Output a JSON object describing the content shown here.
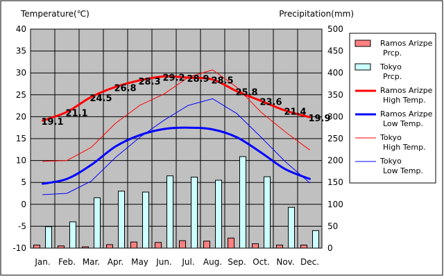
{
  "chart_data": {
    "type": "bar+line",
    "title": "",
    "left_axis_label": "Temperature(℃)",
    "right_axis_label": "Precipitation(mm)",
    "categories": [
      "Jan.",
      "Feb.",
      "Mar.",
      "Apr.",
      "May",
      "Jun.",
      "Jul.",
      "Aug.",
      "Sep.",
      "Oct.",
      "Nov.",
      "Dec."
    ],
    "left_ylim": [
      -10,
      40
    ],
    "left_ticks": [
      -10,
      -5,
      0,
      5,
      10,
      15,
      20,
      25,
      30,
      35,
      40
    ],
    "right_ylim": [
      0,
      500
    ],
    "right_ticks": [
      0,
      50,
      100,
      150,
      200,
      250,
      300,
      350,
      400,
      450,
      500
    ],
    "grid": true,
    "legend_position": "right",
    "colors": {
      "plot_bg": "#c0c0c0",
      "ramos_prcp": "#ff8080",
      "tokyo_prcp": "#ccffff",
      "ramos_high": "#ff0000",
      "ramos_low": "#0000ff",
      "tokyo_high": "#ff0000",
      "tokyo_low": "#0000ff"
    },
    "series": [
      {
        "key": "ramos_prcp",
        "name": "Ramos Arizpe\nPrcp.",
        "type": "bar",
        "axis": "right",
        "values": [
          7,
          5,
          3,
          8,
          14,
          13,
          17,
          16,
          23,
          10,
          7,
          7
        ]
      },
      {
        "key": "tokyo_prcp",
        "name": "Tokyo\nPrcp.",
        "type": "bar",
        "axis": "right",
        "values": [
          49,
          60,
          115,
          130,
          128,
          165,
          162,
          155,
          209,
          163,
          93,
          40
        ]
      },
      {
        "key": "ramos_high",
        "name": "Ramos Arizpe\nHigh Temp.",
        "type": "line",
        "axis": "left",
        "width": 3,
        "values": [
          19.1,
          21.1,
          24.5,
          26.8,
          28.3,
          29.2,
          28.9,
          28.5,
          25.8,
          23.6,
          21.4,
          19.9
        ],
        "labels": [
          "19.1",
          "21.1",
          "24.5",
          "26.8",
          "28.3",
          "29.2",
          "28.9",
          "28.5",
          "25.8",
          "23.6",
          "21.4",
          "19.9"
        ]
      },
      {
        "key": "ramos_low",
        "name": "Ramos Arizpe\nLow Temp.",
        "type": "line",
        "axis": "left",
        "width": 3,
        "values": [
          4.7,
          5.8,
          9.0,
          13.2,
          15.8,
          17.2,
          17.5,
          17.1,
          15.3,
          11.8,
          8.0,
          5.8
        ]
      },
      {
        "key": "tokyo_high",
        "name": "Tokyo\nHigh Temp.",
        "type": "line",
        "axis": "left",
        "width": 1,
        "values": [
          9.8,
          10.0,
          13.0,
          18.5,
          22.6,
          25.2,
          29.0,
          30.7,
          26.7,
          21.0,
          16.5,
          12.4
        ]
      },
      {
        "key": "tokyo_low",
        "name": "Tokyo\nLow Temp.",
        "type": "line",
        "axis": "left",
        "width": 1,
        "values": [
          2.2,
          2.5,
          5.3,
          10.7,
          15.3,
          19.2,
          22.6,
          24.1,
          20.7,
          15.3,
          9.7,
          4.9
        ]
      }
    ]
  }
}
